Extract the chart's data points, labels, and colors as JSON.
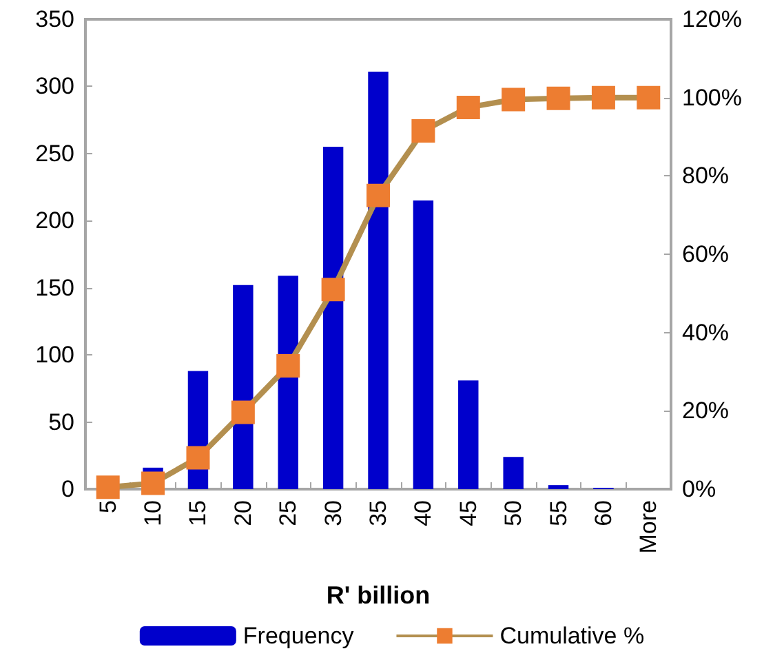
{
  "chart_data": {
    "type": "bar",
    "xlabel": "R' billion",
    "categories": [
      "5",
      "10",
      "15",
      "20",
      "25",
      "30",
      "35",
      "40",
      "45",
      "50",
      "55",
      "60",
      "More"
    ],
    "series": [
      {
        "name": "Frequency",
        "color": "#0000cc",
        "values": [
          0,
          16,
          88,
          152,
          159,
          255,
          311,
          215,
          81,
          24,
          3,
          1,
          0
        ]
      },
      {
        "name": "Cumulative %",
        "type": "line",
        "axis": "y2",
        "color": "#b38f4f",
        "marker": "square",
        "values": [
          0.5,
          1.5,
          8,
          19.6,
          31.5,
          51,
          75,
          91.5,
          97.5,
          99.5,
          99.8,
          100,
          100
        ]
      }
    ],
    "ylim": [
      0,
      350
    ],
    "yticks": [
      0,
      50,
      100,
      150,
      200,
      250,
      300,
      350
    ],
    "y2lim": [
      0,
      120
    ],
    "y2ticks": [
      {
        "value": 0,
        "label": "0%"
      },
      {
        "value": 20,
        "label": "20%"
      },
      {
        "value": 40,
        "label": "40%"
      },
      {
        "value": 60,
        "label": "60%"
      },
      {
        "value": 80,
        "label": "80%"
      },
      {
        "value": 100,
        "label": "100%"
      },
      {
        "value": 120,
        "label": "120%"
      }
    ],
    "grid": false,
    "legend": "bottom"
  }
}
